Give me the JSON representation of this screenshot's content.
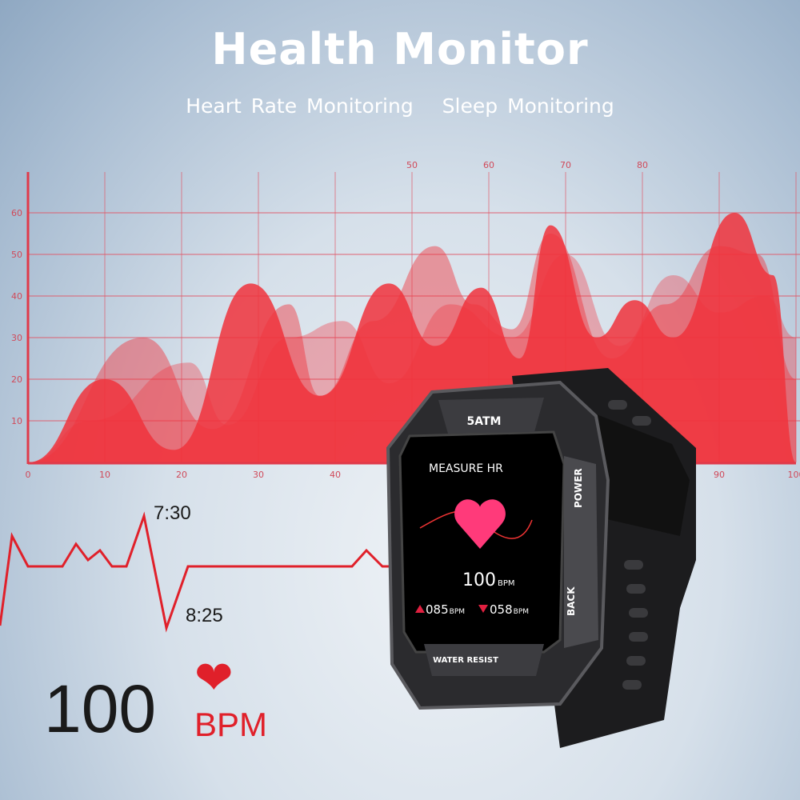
{
  "header": {
    "title": "Health Monitor",
    "features": [
      "Heart Rate Monitoring",
      "Sleep Monitoring"
    ]
  },
  "chart_data": {
    "type": "area",
    "x_ticks": [
      0,
      10,
      20,
      30,
      40,
      50,
      60,
      70,
      80,
      90,
      100
    ],
    "y_ticks": [
      10,
      20,
      30,
      40,
      50,
      60
    ],
    "xlim": [
      0,
      100
    ],
    "ylim": [
      0,
      60
    ],
    "grid": true,
    "color": "#f0323c",
    "series": [
      {
        "points": [
          [
            0,
            0
          ],
          [
            8,
            10
          ],
          [
            21,
            24
          ],
          [
            26,
            9
          ],
          [
            34,
            30
          ],
          [
            41,
            34
          ],
          [
            47,
            19
          ],
          [
            55,
            38
          ],
          [
            63,
            30
          ],
          [
            70,
            50
          ],
          [
            77,
            28
          ],
          [
            84,
            45
          ],
          [
            90,
            36
          ],
          [
            96,
            40
          ],
          [
            100,
            30
          ]
        ]
      },
      {
        "points": [
          [
            0,
            0
          ],
          [
            15,
            30
          ],
          [
            24,
            8
          ],
          [
            34,
            38
          ],
          [
            38,
            16
          ],
          [
            45,
            34
          ],
          [
            53,
            52
          ],
          [
            58,
            38
          ],
          [
            63,
            32
          ],
          [
            68,
            55
          ],
          [
            76,
            25
          ],
          [
            83,
            38
          ],
          [
            90,
            52
          ],
          [
            95,
            50
          ],
          [
            100,
            20
          ]
        ]
      },
      {
        "points": [
          [
            0,
            0
          ],
          [
            10,
            20
          ],
          [
            19,
            3
          ],
          [
            29,
            43
          ],
          [
            38,
            16
          ],
          [
            47,
            43
          ],
          [
            53,
            28
          ],
          [
            59,
            42
          ],
          [
            64,
            25
          ],
          [
            68,
            57
          ],
          [
            74,
            30
          ],
          [
            79,
            39
          ],
          [
            84,
            30
          ],
          [
            92,
            60
          ],
          [
            97,
            45
          ],
          [
            100,
            0
          ]
        ]
      }
    ]
  },
  "ecg": {
    "peak_time": "7:30",
    "trough_time": "8:25",
    "color": "#e0202a"
  },
  "reading": {
    "value": "100",
    "unit": "BPM",
    "icon": "heart-icon"
  },
  "watch": {
    "top_label": "5ATM",
    "bottom_label": "WATER RESIST",
    "button_power": "POWER",
    "button_back": "BACK",
    "screen": {
      "title": "MEASURE HR",
      "value": "100",
      "unit": "BPM",
      "max": "085",
      "min": "058",
      "max_unit": "BPM",
      "min_unit": "BPM"
    }
  }
}
